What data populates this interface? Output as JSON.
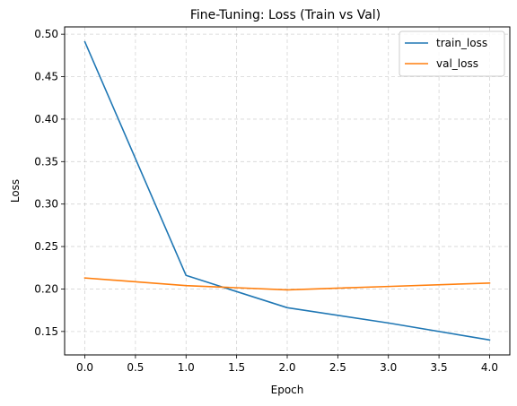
{
  "chart_data": {
    "type": "line",
    "title": "Fine-Tuning: Loss (Train vs Val)",
    "xlabel": "Epoch",
    "ylabel": "Loss",
    "x": [
      0,
      1,
      2,
      3,
      4
    ],
    "series": [
      {
        "name": "train_loss",
        "color": "#1f77b4",
        "values": [
          0.491,
          0.216,
          0.178,
          0.16,
          0.14
        ]
      },
      {
        "name": "val_loss",
        "color": "#ff7f0e",
        "values": [
          0.213,
          0.204,
          0.199,
          0.203,
          0.207
        ]
      }
    ],
    "xlim": [
      -0.2,
      4.2
    ],
    "ylim": [
      0.1224,
      0.5086
    ],
    "xticks": [
      "0.0",
      "0.5",
      "1.0",
      "1.5",
      "2.0",
      "2.5",
      "3.0",
      "3.5",
      "4.0"
    ],
    "yticks": [
      "0.15",
      "0.20",
      "0.25",
      "0.30",
      "0.35",
      "0.40",
      "0.45",
      "0.50"
    ],
    "grid": true,
    "grid_style": "dashed",
    "legend_position": "top-right"
  }
}
